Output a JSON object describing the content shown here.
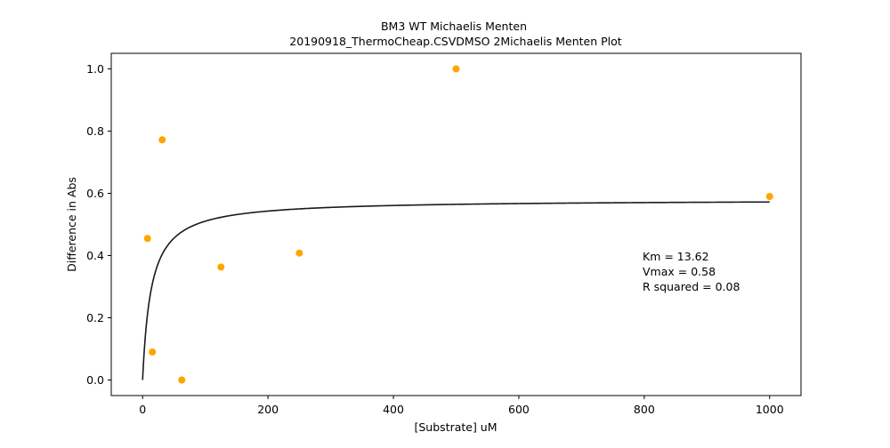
{
  "chart_data": {
    "type": "scatter",
    "title": "BM3 WT Michaelis Menten",
    "subtitle": "20190918_ThermoCheap.CSVDMSO 2Michaelis Menten Plot",
    "xlabel": "[Substrate] uM",
    "ylabel": "Difference in Abs",
    "xlim": [
      -50,
      1050
    ],
    "ylim": [
      -0.05,
      1.05
    ],
    "x_ticks": [
      0,
      200,
      400,
      600,
      800,
      1000
    ],
    "x_tick_labels": [
      "0",
      "200",
      "400",
      "600",
      "800",
      "1000"
    ],
    "y_ticks": [
      0.0,
      0.2,
      0.4,
      0.6,
      0.8,
      1.0
    ],
    "y_tick_labels": [
      "0.0",
      "0.2",
      "0.4",
      "0.6",
      "0.8",
      "1.0"
    ],
    "grid": false,
    "series": [
      {
        "type": "scatter",
        "color": "#ffa500",
        "points": [
          {
            "x": 7.8,
            "y": 0.455
          },
          {
            "x": 15.6,
            "y": 0.09
          },
          {
            "x": 31.25,
            "y": 0.772
          },
          {
            "x": 62.5,
            "y": 0.0
          },
          {
            "x": 125,
            "y": 0.363
          },
          {
            "x": 250,
            "y": 0.408
          },
          {
            "x": 500,
            "y": 1.0
          },
          {
            "x": 1000,
            "y": 0.59
          }
        ]
      },
      {
        "type": "line",
        "color": "#1a1a1a",
        "fit": {
          "model": "michaelis-menten",
          "km": 13.62,
          "vmax": 0.58,
          "x_range": [
            0,
            1000
          ]
        }
      }
    ],
    "annotation": {
      "lines": [
        "Km = 13.62",
        "Vmax = 0.58",
        "R squared = 0.08"
      ]
    }
  }
}
